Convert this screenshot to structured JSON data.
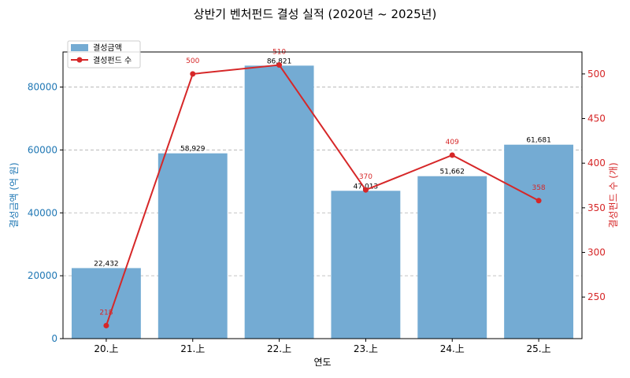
{
  "chart_data": {
    "type": "bar",
    "title": "상반기 벤처펀드 결성 실적 (2020년 ~ 2025년)",
    "xlabel": "연도",
    "ylabel_left": "결성금액 (억 원)",
    "ylabel_right": "결성펀드 수 (개)",
    "categories": [
      "20.上",
      "21.上",
      "22.上",
      "23.上",
      "24.上",
      "25.上"
    ],
    "series": [
      {
        "name": "결성금액",
        "type": "bar",
        "axis": "left",
        "color": "#74abd3",
        "values": [
          22432,
          58929,
          86821,
          47013,
          51662,
          61681
        ],
        "labels": [
          "22,432",
          "58,929",
          "86,821",
          "47,013",
          "51,662",
          "61,681"
        ]
      },
      {
        "name": "결성펀드 수",
        "type": "line",
        "axis": "right",
        "color": "#d62728",
        "values": [
          218,
          500,
          510,
          370,
          409,
          358
        ],
        "labels": [
          "218",
          "500",
          "510",
          "370",
          "409",
          "358"
        ]
      }
    ],
    "ylim_left": [
      0,
      91163
    ],
    "yticks_left": [
      0,
      20000,
      40000,
      60000,
      80000
    ],
    "ylim_right": [
      203.4,
      524.6
    ],
    "yticks_right": [
      250,
      300,
      350,
      400,
      450,
      500
    ],
    "grid": "horizontal dashed",
    "legend": "top-left",
    "left_axis_color": "#1f77b4",
    "right_axis_color": "#d62728"
  }
}
